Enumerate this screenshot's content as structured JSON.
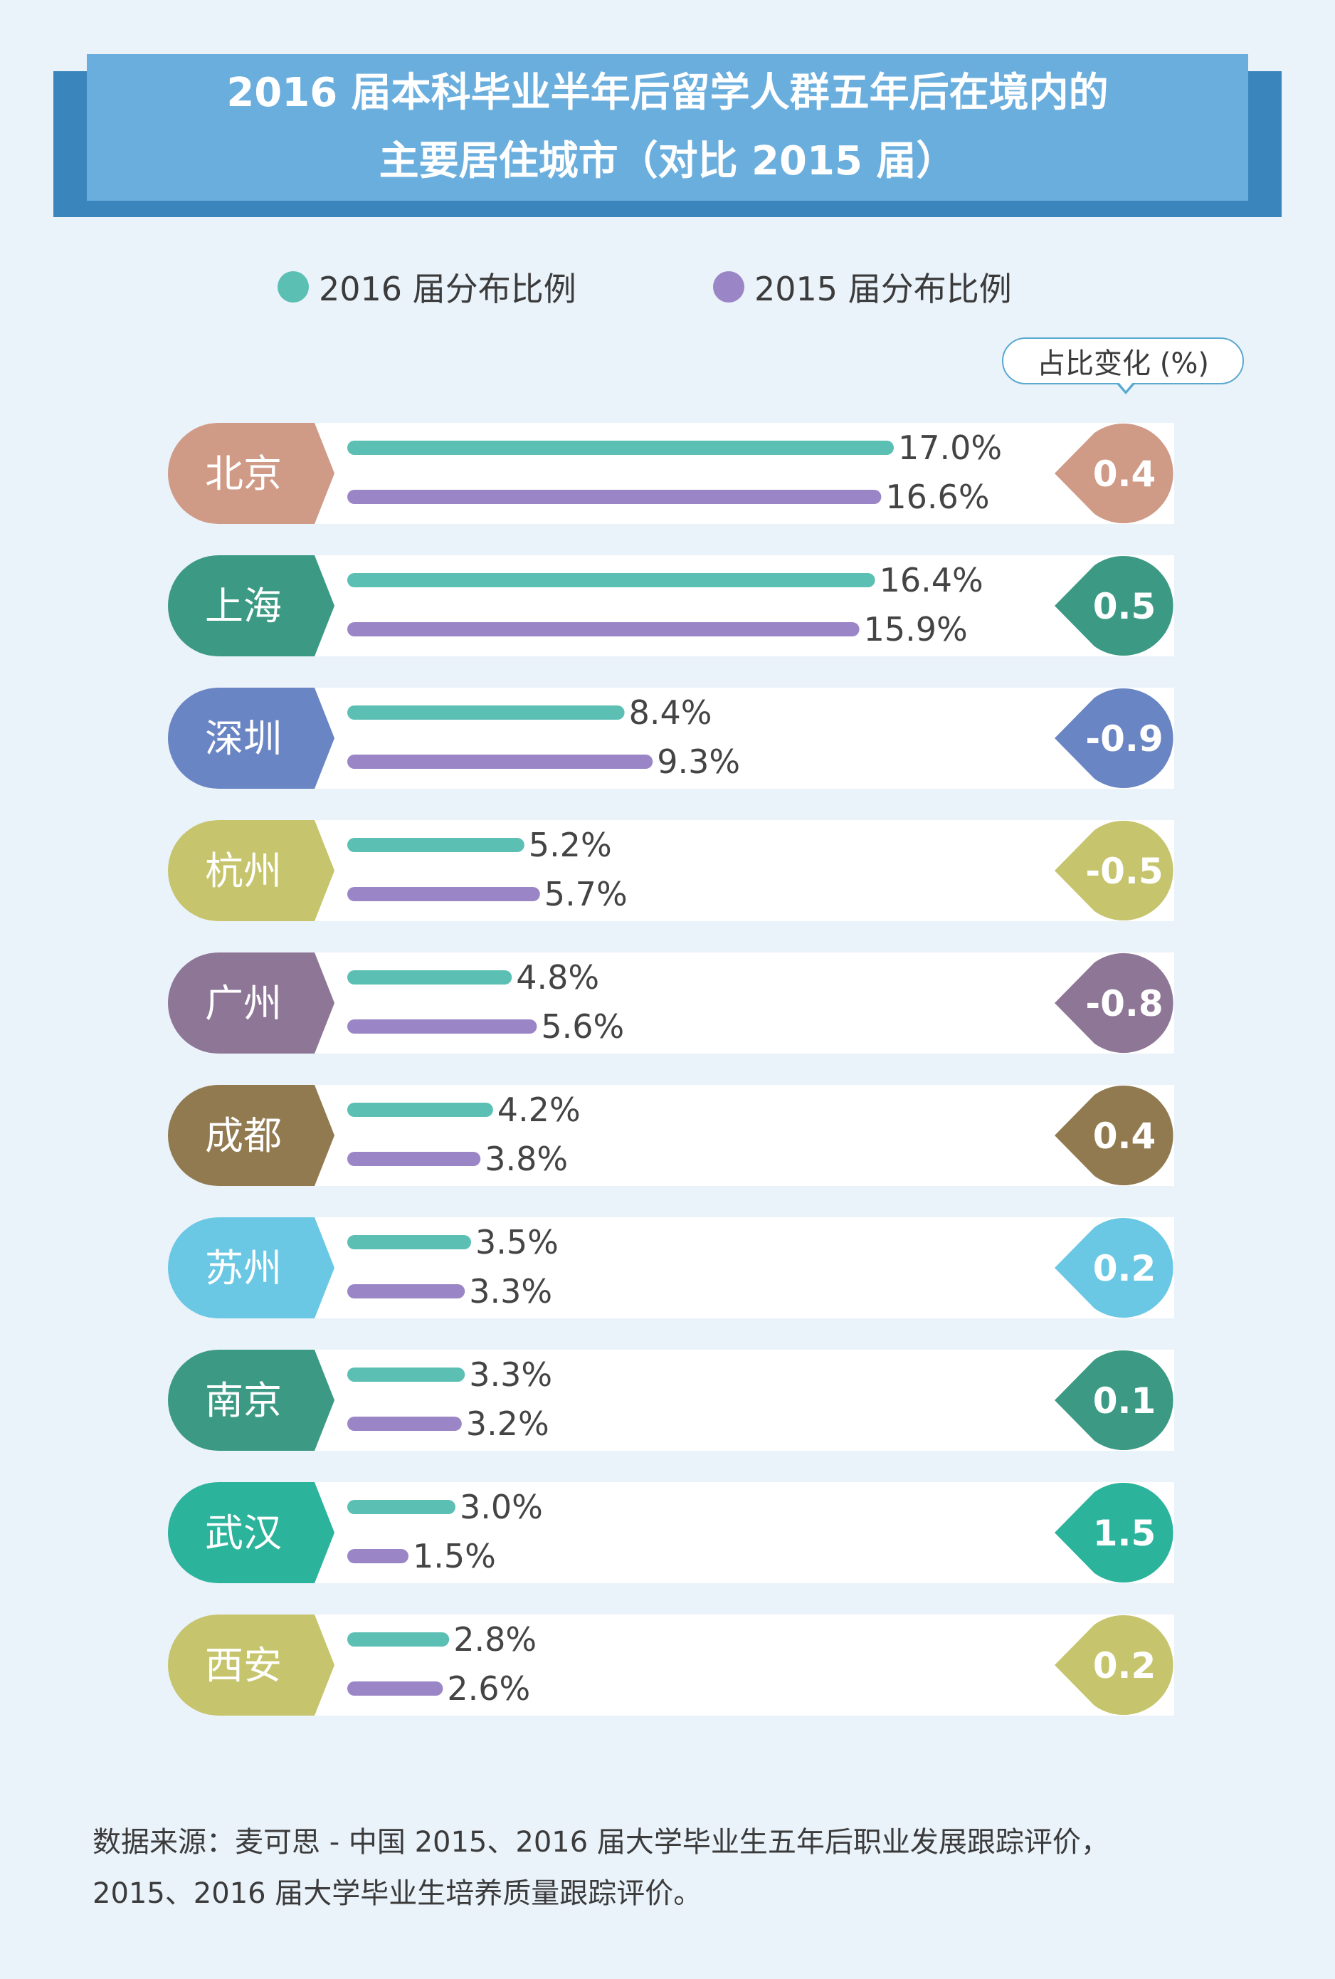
{
  "title": {
    "line1": "2016 届本科毕业半年后留学人群五年后在境内的",
    "line2": "主要居住城市（对比 2015 届）"
  },
  "legend": {
    "series2016": "2016 届分布比例",
    "series2015": "2015 届分布比例"
  },
  "change_label": "占比变化 (%)",
  "colors": {
    "series2016": "#5bbfb4",
    "series2015": "#9a86c6"
  },
  "chart_data": {
    "type": "bar",
    "categories": [
      "北京",
      "上海",
      "深圳",
      "杭州",
      "广州",
      "成都",
      "苏州",
      "南京",
      "武汉",
      "西安"
    ],
    "series": [
      {
        "name": "2016 届分布比例",
        "values": [
          17.0,
          16.4,
          8.4,
          5.2,
          4.8,
          4.2,
          3.5,
          3.3,
          3.0,
          2.8
        ]
      },
      {
        "name": "2015 届分布比例",
        "values": [
          16.6,
          15.9,
          9.3,
          5.7,
          5.6,
          3.8,
          3.3,
          3.2,
          1.5,
          2.6
        ]
      }
    ],
    "value_labels_2016": [
      "17.0%",
      "16.4%",
      "8.4%",
      "5.2%",
      "4.8%",
      "4.2%",
      "3.5%",
      "3.3%",
      "3.0%",
      "2.8%"
    ],
    "value_labels_2015": [
      "16.6%",
      "15.9%",
      "9.3%",
      "5.7%",
      "5.6%",
      "3.8%",
      "3.3%",
      "3.2%",
      "1.5%",
      "2.6%"
    ],
    "change": [
      "0.4",
      "0.5",
      "-0.9",
      "-0.5",
      "-0.8",
      "0.4",
      "0.2",
      "0.1",
      "1.5",
      "0.2"
    ],
    "category_colors": [
      "#cf9a86",
      "#3c9a84",
      "#6a85c4",
      "#c6c46c",
      "#8e7696",
      "#917a50",
      "#6ac8e4",
      "#3c9a84",
      "#2bb39c",
      "#c6c46c"
    ],
    "xlim": [
      0,
      17.0
    ],
    "grid": false
  },
  "source": {
    "line1": "数据来源：麦可思 - 中国 2015、2016 届大学毕业生五年后职业发展跟踪评价，",
    "line2": "2015、2016 届大学毕业生培养质量跟踪评价。"
  }
}
